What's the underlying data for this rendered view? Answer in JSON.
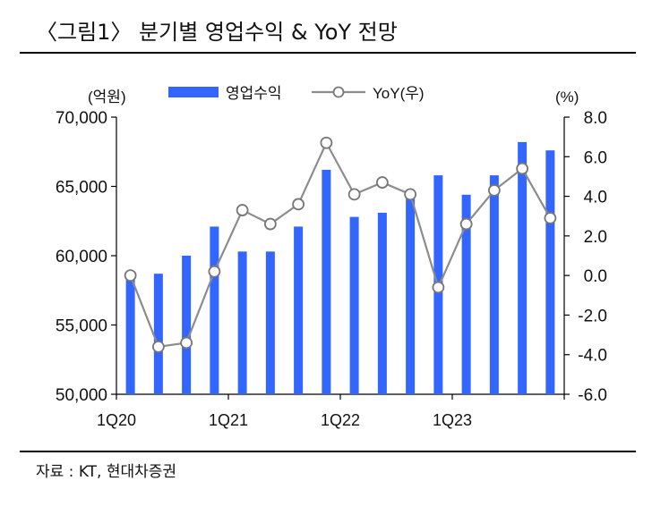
{
  "title": "〈그림1〉 분기별  영업수익  & YoY  전망",
  "source": "자료 : KT,  현대차증권",
  "chart_data": {
    "type": "bar+line",
    "left_unit": "(억원)",
    "right_unit": "(%)",
    "left_ylim": [
      50000,
      70000
    ],
    "left_ticks": [
      "50,000",
      "55,000",
      "60,000",
      "65,000",
      "70,000"
    ],
    "right_ylim": [
      -6.0,
      8.0
    ],
    "right_ticks": [
      "-6.0",
      "-4.0",
      "-2.0",
      "0.0",
      "2.0",
      "4.0",
      "6.0",
      "8.0"
    ],
    "x_tick_labels": [
      "1Q20",
      "1Q21",
      "1Q22",
      "1Q23"
    ],
    "series": [
      {
        "name": "영업수익",
        "type": "bar",
        "color": "#3366ff",
        "values": [
          58300,
          58700,
          60000,
          62100,
          60300,
          60300,
          62100,
          66200,
          62800,
          63100,
          64600,
          65800,
          64400,
          65800,
          68200,
          67600
        ]
      },
      {
        "name": "YoY(우)",
        "type": "line",
        "color": "#8c8c8c",
        "values": [
          0.0,
          -3.6,
          -3.4,
          0.2,
          3.3,
          2.6,
          3.6,
          6.7,
          4.1,
          4.7,
          4.1,
          -0.6,
          2.6,
          4.3,
          5.4,
          2.9
        ]
      }
    ]
  }
}
